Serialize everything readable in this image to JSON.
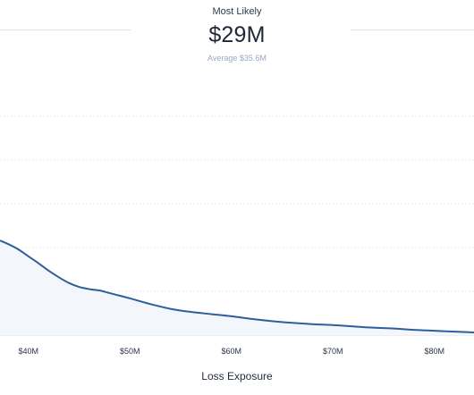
{
  "summary": {
    "kicker": "Most Likely",
    "headline_value": "$29M",
    "subline": "Average $35.6M"
  },
  "chart_data": {
    "type": "area",
    "xlabel": "Loss Exposure",
    "ylabel": "",
    "x_ticks": [
      {
        "value": 40,
        "label": "$40M"
      },
      {
        "value": 50,
        "label": "$50M"
      },
      {
        "value": 60,
        "label": "$60M"
      },
      {
        "value": 70,
        "label": "$70M"
      },
      {
        "value": 80,
        "label": "$80M"
      }
    ],
    "xlim": [
      37.2,
      83.9
    ],
    "ylim": [
      0,
      5
    ],
    "y_gridlines": [
      1,
      2,
      3,
      4,
      5
    ],
    "grid": true,
    "series": [
      {
        "x": [
          37.2,
          38,
          39,
          40,
          41,
          42,
          43,
          44,
          45,
          46,
          47,
          48,
          49,
          50,
          52,
          54,
          56,
          58,
          60,
          62,
          64,
          66,
          68,
          70,
          72,
          74,
          76,
          78,
          80,
          82,
          83.9
        ],
        "y": [
          2.16,
          2.08,
          1.96,
          1.8,
          1.64,
          1.47,
          1.32,
          1.19,
          1.1,
          1.05,
          1.02,
          0.96,
          0.9,
          0.84,
          0.71,
          0.6,
          0.53,
          0.48,
          0.43,
          0.37,
          0.32,
          0.28,
          0.25,
          0.23,
          0.2,
          0.17,
          0.15,
          0.12,
          0.1,
          0.08,
          0.06
        ],
        "color": "#2f5e9c",
        "fill": "#f3f7fc"
      }
    ]
  }
}
